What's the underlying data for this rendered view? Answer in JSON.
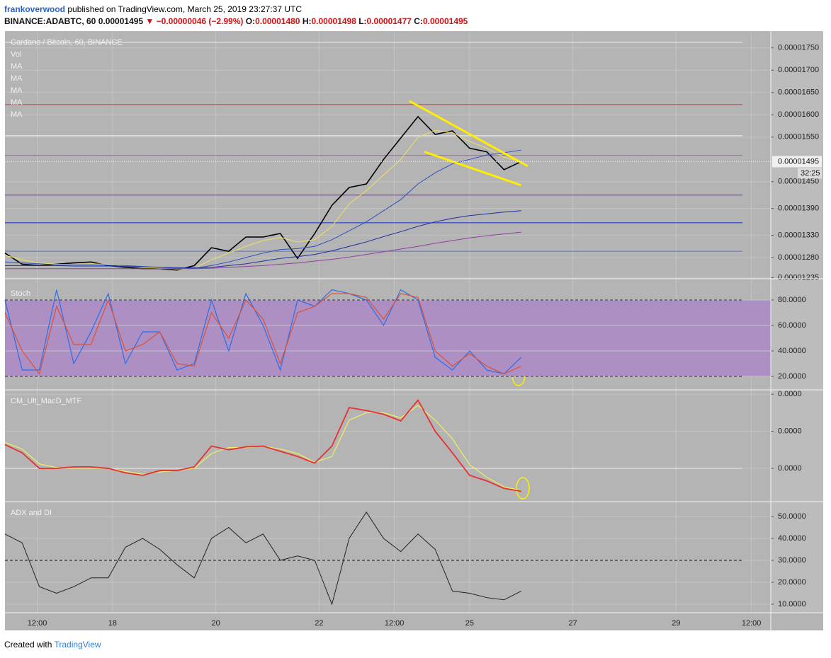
{
  "header": {
    "author": "frankoverwood",
    "published": " published on TradingView.com, March 25, 2019 23:27:37 UTC",
    "quote": [
      {
        "text": "BINANCE:ADABTC, 60 ",
        "color": "#111111"
      },
      {
        "text": "0.00001495 ",
        "color": "#111111"
      },
      {
        "text": "▼ −0.00000046 (−2.99%) ",
        "color": "#d01010"
      },
      {
        "text": "O:",
        "color": "#111111"
      },
      {
        "text": "0.00001480 ",
        "color": "#d01010"
      },
      {
        "text": "H:",
        "color": "#111111"
      },
      {
        "text": "0.00001498 ",
        "color": "#d01010"
      },
      {
        "text": "L:",
        "color": "#111111"
      },
      {
        "text": "0.00001477 ",
        "color": "#d01010"
      },
      {
        "text": "C:",
        "color": "#111111"
      },
      {
        "text": "0.00001495",
        "color": "#d01010"
      }
    ]
  },
  "footer": {
    "created": "Created with",
    "brand": "TradingView"
  },
  "chart_data": [
    {
      "type": "line",
      "title": "Cardano / Bitcoin, 60, BINANCE",
      "legend": [
        "Vol",
        "MA",
        "MA",
        "MA",
        "MA",
        "MA"
      ],
      "ylim": [
        1.234e-05,
        1.786e-05
      ],
      "grid": true,
      "yticks": [
        {
          "value": 1.75e-05,
          "label": "0.00001750"
        },
        {
          "value": 1.7e-05,
          "label": "0.00001700"
        },
        {
          "value": 1.65e-05,
          "label": "0.00001650"
        },
        {
          "value": 1.6e-05,
          "label": "0.00001600"
        },
        {
          "value": 1.55e-05,
          "label": "0.00001550"
        },
        {
          "value": 1.45e-05,
          "label": "0.00001450"
        },
        {
          "value": 1.39e-05,
          "label": "0.00001390"
        },
        {
          "value": 1.33e-05,
          "label": "0.00001330"
        },
        {
          "value": 1.28e-05,
          "label": "0.00001280"
        },
        {
          "value": 1.235e-05,
          "label": "0.00001235"
        }
      ],
      "last_price": {
        "value": 1.495e-05,
        "label": "0.00001495"
      },
      "countdown": "32:25",
      "levels": [
        {
          "value": 1.763e-05,
          "color": "#f4f4f4"
        },
        {
          "value": 1.623e-05,
          "color": "#ff3030"
        },
        {
          "value": 1.553e-05,
          "color": "#f4f4f4"
        },
        {
          "value": 1.509e-05,
          "color": "#e040e0"
        },
        {
          "value": 1.42e-05,
          "color": "#8020c0"
        },
        {
          "value": 1.358e-05,
          "color": "#1030d0"
        },
        {
          "value": 1.294e-05,
          "color": "#5878c8"
        }
      ],
      "x": [
        0,
        8,
        16,
        24,
        32,
        40,
        48,
        56,
        64,
        72,
        80,
        88,
        96,
        104,
        112,
        120,
        128,
        136,
        144,
        152,
        160,
        168,
        176,
        184,
        192,
        200,
        208,
        216,
        224,
        232,
        240
      ],
      "series": [
        {
          "color": "#000000",
          "width": 1.6,
          "values": [
            1.29e-05,
            1.265e-05,
            1.262e-05,
            1.265e-05,
            1.268e-05,
            1.27e-05,
            1.262e-05,
            1.258e-05,
            1.255e-05,
            1.255e-05,
            1.252e-05,
            1.262e-05,
            1.302e-05,
            1.294e-05,
            1.326e-05,
            1.326e-05,
            1.334e-05,
            1.278e-05,
            1.334e-05,
            1.397e-05,
            1.437e-05,
            1.445e-05,
            1.5e-05,
            1.548e-05,
            1.596e-05,
            1.556e-05,
            1.564e-05,
            1.525e-05,
            1.517e-05,
            1.477e-05,
            1.495e-05
          ]
        },
        {
          "color": "#f0e060",
          "width": 1,
          "values": [
            1.285e-05,
            1.275e-05,
            1.268e-05,
            1.265e-05,
            1.265e-05,
            1.266e-05,
            1.265e-05,
            1.262e-05,
            1.258e-05,
            1.256e-05,
            1.254e-05,
            1.256e-05,
            1.275e-05,
            1.29e-05,
            1.305e-05,
            1.318e-05,
            1.325e-05,
            1.315e-05,
            1.32e-05,
            1.35e-05,
            1.4e-05,
            1.43e-05,
            1.465e-05,
            1.5e-05,
            1.55e-05,
            1.565e-05,
            1.56e-05,
            1.54e-05,
            1.525e-05,
            1.505e-05,
            1.495e-05
          ]
        },
        {
          "color": "#3050c0",
          "width": 1,
          "values": [
            1.27e-05,
            1.268e-05,
            1.266e-05,
            1.264e-05,
            1.264e-05,
            1.264e-05,
            1.263e-05,
            1.262e-05,
            1.26e-05,
            1.258e-05,
            1.256e-05,
            1.256e-05,
            1.262e-05,
            1.27e-05,
            1.28e-05,
            1.29e-05,
            1.298e-05,
            1.3e-05,
            1.305e-05,
            1.32e-05,
            1.34e-05,
            1.36e-05,
            1.385e-05,
            1.41e-05,
            1.445e-05,
            1.47e-05,
            1.49e-05,
            1.5e-05,
            1.51e-05,
            1.515e-05,
            1.521e-05
          ]
        },
        {
          "color": "#2030a0",
          "width": 1,
          "values": [
            1.262e-05,
            1.262e-05,
            1.262e-05,
            1.262e-05,
            1.261e-05,
            1.261e-05,
            1.261e-05,
            1.26e-05,
            1.259e-05,
            1.258e-05,
            1.257e-05,
            1.257e-05,
            1.258e-05,
            1.262e-05,
            1.266e-05,
            1.272e-05,
            1.278e-05,
            1.282e-05,
            1.287e-05,
            1.295e-05,
            1.305e-05,
            1.315e-05,
            1.327e-05,
            1.338e-05,
            1.35e-05,
            1.36e-05,
            1.368e-05,
            1.374e-05,
            1.378e-05,
            1.382e-05,
            1.385e-05
          ]
        },
        {
          "color": "#9040a0",
          "width": 1,
          "values": [
            1.255e-05,
            1.255e-05,
            1.255e-05,
            1.255e-05,
            1.255e-05,
            1.255e-05,
            1.255e-05,
            1.255e-05,
            1.255e-05,
            1.255e-05,
            1.255e-05,
            1.255e-05,
            1.256e-05,
            1.258e-05,
            1.26e-05,
            1.262e-05,
            1.265e-05,
            1.268e-05,
            1.272e-05,
            1.276e-05,
            1.281e-05,
            1.287e-05,
            1.293e-05,
            1.299e-05,
            1.305e-05,
            1.312e-05,
            1.318e-05,
            1.324e-05,
            1.329e-05,
            1.333e-05,
            1.337e-05
          ]
        }
      ],
      "trendlines": [
        {
          "color": "#ffee00",
          "x": [
            188,
            243
          ],
          "values": [
            1.631e-05,
            1.485e-05
          ]
        },
        {
          "color": "#ffee00",
          "x": [
            195,
            240
          ],
          "values": [
            1.517e-05,
            1.442e-05
          ]
        }
      ]
    },
    {
      "type": "line",
      "title": "Stoch",
      "ylim": [
        10,
        93.3
      ],
      "grid": true,
      "yticks": [
        {
          "value": 80,
          "label": "80.0000"
        },
        {
          "value": 60,
          "label": "60.0000"
        },
        {
          "value": 40,
          "label": "40.0000"
        },
        {
          "value": 20,
          "label": "20.0000"
        }
      ],
      "band": {
        "range": [
          20,
          80
        ],
        "color": "#ad8fc4"
      },
      "levels": [
        {
          "value": 80,
          "color": "#333333",
          "dash": true
        },
        {
          "value": 20,
          "color": "#333333",
          "dash": true
        }
      ],
      "x": [
        0,
        8,
        16,
        24,
        32,
        40,
        48,
        56,
        64,
        72,
        80,
        88,
        96,
        104,
        112,
        120,
        128,
        136,
        144,
        152,
        160,
        168,
        176,
        184,
        192,
        200,
        208,
        216,
        224,
        232,
        240
      ],
      "series": [
        {
          "color": "#2a6ee8",
          "width": 1.2,
          "values": [
            80,
            25,
            25,
            88,
            30,
            55,
            85,
            30,
            55,
            55,
            25,
            30,
            80,
            40,
            85,
            60,
            25,
            80,
            75,
            88,
            85,
            80,
            60,
            88,
            80,
            35,
            25,
            40,
            25,
            22,
            35
          ]
        },
        {
          "color": "#e05030",
          "width": 1.2,
          "values": [
            70,
            40,
            22,
            75,
            45,
            45,
            80,
            40,
            45,
            55,
            30,
            28,
            70,
            50,
            80,
            65,
            30,
            70,
            75,
            85,
            85,
            82,
            65,
            85,
            82,
            40,
            28,
            38,
            28,
            22,
            28
          ]
        }
      ]
    },
    {
      "type": "line",
      "title": "CM_Ult_MacD_MTF",
      "ylim": [
        -4.4e-07,
        1.05e-06
      ],
      "grid": true,
      "yticks": [
        {
          "value": 1e-06,
          "label": "0.0000"
        },
        {
          "value": 5e-07,
          "label": "0.0000"
        },
        {
          "value": 0,
          "label": "0.0000"
        }
      ],
      "levels": [
        {
          "value": 0,
          "color": "#f4f4f4"
        }
      ],
      "x": [
        0,
        8,
        16,
        24,
        32,
        40,
        48,
        56,
        64,
        72,
        80,
        88,
        96,
        104,
        112,
        120,
        128,
        136,
        144,
        152,
        160,
        168,
        176,
        184,
        192,
        200,
        208,
        216,
        224,
        232,
        240
      ],
      "series": [
        {
          "color": "#f0f060",
          "width": 1.2,
          "values": [
            3.5e-07,
            2.6e-07,
            6e-08,
            1e-08,
            0,
            0,
            0,
            -4e-08,
            -8e-08,
            -5e-08,
            -3e-08,
            0,
            2e-07,
            2.8e-07,
            2.8e-07,
            3e-07,
            2.6e-07,
            2e-07,
            8e-08,
            1.6e-07,
            6.5e-07,
            7.5e-07,
            7.5e-07,
            6.8e-07,
            8.5e-07,
            6.5e-07,
            4e-07,
            5e-08,
            -1.2e-07,
            -2.5e-07,
            -3e-07
          ]
        },
        {
          "color": "#e83030",
          "width": 1.8,
          "values": [
            3.2e-07,
            2.1e-07,
            0,
            0,
            2e-08,
            2e-08,
            0,
            -6e-08,
            -9.5e-08,
            -3e-08,
            -3e-08,
            2e-08,
            3e-07,
            2.5e-07,
            2.9e-07,
            3e-07,
            2.3e-07,
            1.6e-07,
            7e-08,
            3e-07,
            8.2e-07,
            7.8e-07,
            7.3e-07,
            6.4e-07,
            9.2e-07,
            5e-07,
            2.1e-07,
            -9.5e-08,
            -1.7e-07,
            -2.7e-07,
            -3.1e-07
          ]
        }
      ]
    },
    {
      "type": "line",
      "title": "ADX and DI",
      "ylim": [
        6.45,
        56.45
      ],
      "grid": true,
      "yticks": [
        {
          "value": 50,
          "label": "50.0000"
        },
        {
          "value": 40,
          "label": "40.0000"
        },
        {
          "value": 30,
          "label": "30.0000"
        },
        {
          "value": 20,
          "label": "20.0000"
        },
        {
          "value": 10,
          "label": "10.0000"
        }
      ],
      "levels": [
        {
          "value": 30,
          "color": "#111111",
          "dash": true
        }
      ],
      "xlim": [
        0,
        356
      ],
      "xticks": [
        {
          "value": 15,
          "label": "12:00"
        },
        {
          "value": 50,
          "label": "18"
        },
        {
          "value": 98,
          "label": "20"
        },
        {
          "value": 146,
          "label": "22"
        },
        {
          "value": 181,
          "label": "12:00"
        },
        {
          "value": 216,
          "label": "25"
        },
        {
          "value": 264,
          "label": "27"
        },
        {
          "value": 312,
          "label": "29"
        },
        {
          "value": 347,
          "label": "12:00"
        }
      ],
      "x": [
        0,
        8,
        16,
        24,
        32,
        40,
        48,
        56,
        64,
        72,
        80,
        88,
        96,
        104,
        112,
        120,
        128,
        136,
        144,
        152,
        160,
        168,
        176,
        184,
        192,
        200,
        208,
        216,
        224,
        232,
        240
      ],
      "series": [
        {
          "color": "#222222",
          "width": 1,
          "values": [
            42,
            38,
            18,
            15,
            18,
            22,
            22,
            36,
            40,
            35,
            28,
            22,
            40,
            45,
            38,
            42,
            30,
            32,
            30,
            10,
            40,
            52,
            40,
            34,
            42,
            35,
            16,
            15,
            13,
            12,
            16
          ]
        }
      ]
    }
  ]
}
